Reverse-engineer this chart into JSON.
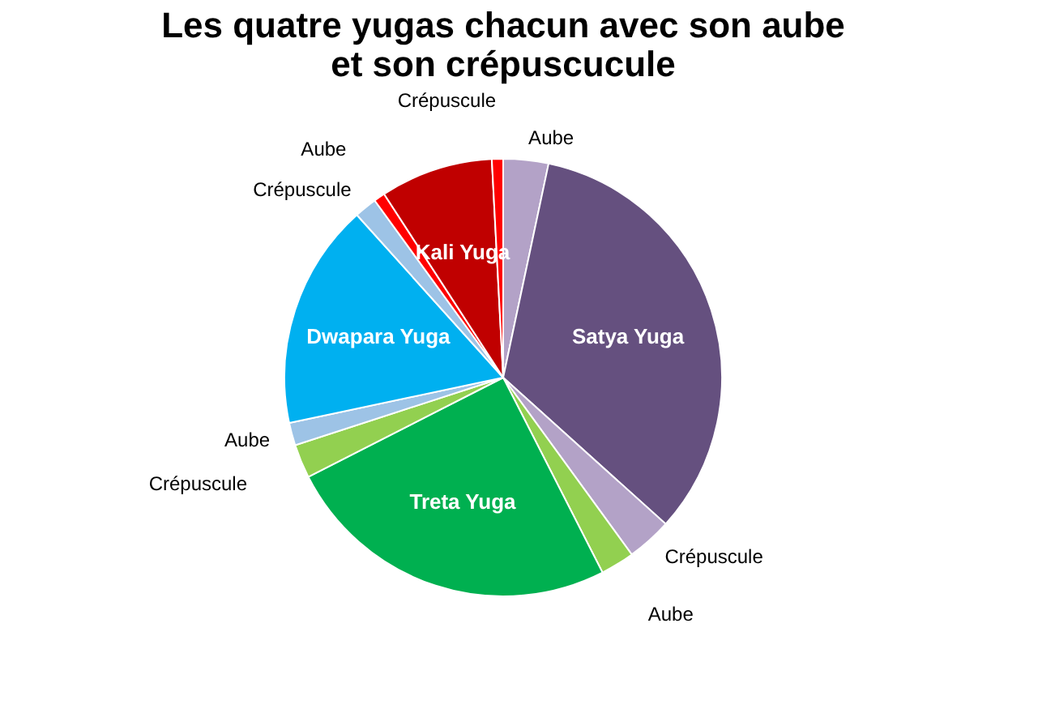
{
  "chart_data": {
    "type": "pie",
    "title": "Les quatre yugas chacun avec son aube et son crépuscucule",
    "categories": [
      "Aube",
      "Satya Yuga",
      "Crépuscule",
      "Aube",
      "Treta Yuga",
      "Crépuscule",
      "Aube",
      "Dwapara Yuga",
      "Crépuscule",
      "Aube",
      "Kali Yuga",
      "Crépuscule"
    ],
    "values": [
      3.33,
      33.34,
      3.33,
      2.5,
      25,
      2.5,
      1.67,
      16.67,
      1.67,
      0.83,
      8.33,
      0.83
    ],
    "colors": [
      "#b3a2c7",
      "#65507f",
      "#b3a2c7",
      "#92d050",
      "#00b050",
      "#92d050",
      "#9dc3e6",
      "#00b0f0",
      "#9dc3e6",
      "#ff0000",
      "#c00000",
      "#ff0000"
    ],
    "legend": false
  }
}
